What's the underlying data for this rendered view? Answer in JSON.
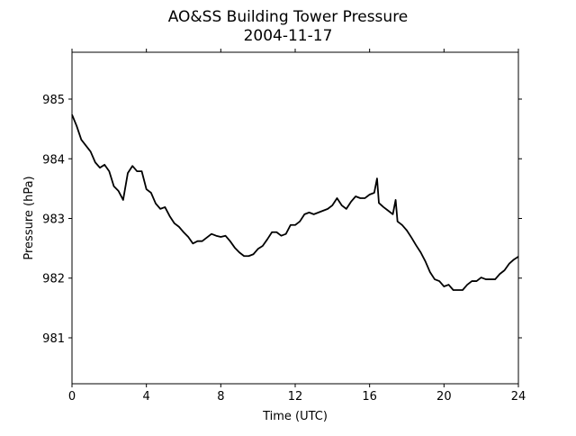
{
  "chart_data": {
    "type": "line",
    "title": "AO&SS Building Tower Pressure",
    "subtitle": "2004-11-17",
    "x_label": "Time (UTC)",
    "y_label": "Pressure (hPa)",
    "x": [
      0,
      0.25,
      0.5,
      0.75,
      1,
      1.25,
      1.5,
      1.75,
      2,
      2.25,
      2.5,
      2.75,
      3,
      3.25,
      3.5,
      3.75,
      4,
      4.25,
      4.5,
      4.75,
      5,
      5.25,
      5.5,
      5.75,
      6,
      6.25,
      6.5,
      6.75,
      7,
      7.25,
      7.5,
      7.75,
      8,
      8.25,
      8.5,
      8.75,
      9,
      9.25,
      9.5,
      9.75,
      10,
      10.25,
      10.5,
      10.75,
      11,
      11.25,
      11.5,
      11.75,
      12,
      12.25,
      12.5,
      12.75,
      13,
      13.25,
      13.5,
      13.75,
      14,
      14.25,
      14.5,
      14.75,
      15,
      15.25,
      15.5,
      15.75,
      16,
      16.25,
      16.4,
      16.5,
      16.75,
      17,
      17.25,
      17.4,
      17.5,
      17.75,
      18,
      18.25,
      18.5,
      18.75,
      19,
      19.25,
      19.5,
      19.75,
      20,
      20.25,
      20.5,
      20.75,
      21,
      21.25,
      21.5,
      21.75,
      22,
      22.25,
      22.5,
      22.75,
      23,
      23.25,
      23.5,
      23.75,
      24
    ],
    "series": [
      {
        "name": "Pressure",
        "color": "#000000",
        "values": [
          984.74,
          984.55,
          984.32,
          984.22,
          984.12,
          983.94,
          983.85,
          983.9,
          983.79,
          983.54,
          983.46,
          983.31,
          983.76,
          983.88,
          983.79,
          983.79,
          983.49,
          983.43,
          983.25,
          983.16,
          983.19,
          983.04,
          982.92,
          982.86,
          982.77,
          982.69,
          982.58,
          982.62,
          982.62,
          982.68,
          982.74,
          982.71,
          982.69,
          982.71,
          982.62,
          982.51,
          982.43,
          982.37,
          982.37,
          982.4,
          982.49,
          982.54,
          982.65,
          982.77,
          982.77,
          982.71,
          982.74,
          982.89,
          982.89,
          982.95,
          983.07,
          983.1,
          983.07,
          983.1,
          983.13,
          983.16,
          983.22,
          983.34,
          983.22,
          983.16,
          983.28,
          983.37,
          983.34,
          983.34,
          983.4,
          983.43,
          983.67,
          983.26,
          983.19,
          983.13,
          983.07,
          983.31,
          982.95,
          982.89,
          982.8,
          982.68,
          982.55,
          982.43,
          982.28,
          982.1,
          981.98,
          981.95,
          981.86,
          981.89,
          981.8,
          981.8,
          981.8,
          981.89,
          981.95,
          981.95,
          982.01,
          981.98,
          981.98,
          981.98,
          982.07,
          982.13,
          982.24,
          982.31,
          982.36
        ]
      }
    ],
    "xlim": [
      0,
      24
    ],
    "xticks": [
      0,
      4,
      8,
      12,
      16,
      20,
      24
    ],
    "ylim": [
      980.23,
      985.785
    ],
    "yticks": [
      981,
      982,
      983,
      984,
      985
    ]
  }
}
